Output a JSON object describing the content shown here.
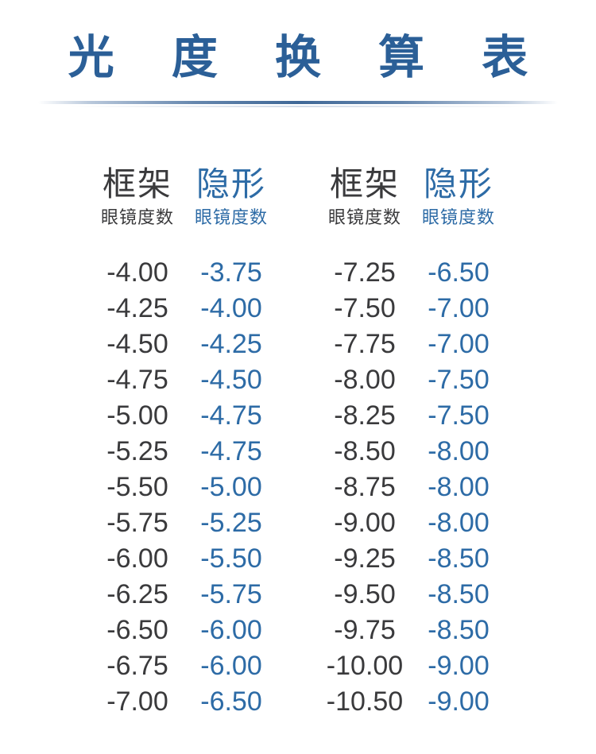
{
  "title": "光 度 换 算 表",
  "colors": {
    "title_blue": "#2b5f97",
    "contact_blue": "#2d6ba6",
    "frame_dark": "#3a3a3c",
    "divider_blue": "#3f6897",
    "background": "#ffffff"
  },
  "headers": {
    "frame_main": "框架",
    "frame_sub": "眼镜度数",
    "contact_main": "隐形",
    "contact_sub": "眼镜度数"
  },
  "chart_data": {
    "type": "table",
    "title": "光度换算表",
    "columns": [
      "框架眼镜度数",
      "隐形眼镜度数",
      "框架眼镜度数",
      "隐形眼镜度数"
    ],
    "groups": [
      {
        "rows": [
          [
            "-4.00",
            "-3.75"
          ],
          [
            "-4.25",
            "-4.00"
          ],
          [
            "-4.50",
            "-4.25"
          ],
          [
            "-4.75",
            "-4.50"
          ],
          [
            "-5.00",
            "-4.75"
          ],
          [
            "-5.25",
            "-4.75"
          ],
          [
            "-5.50",
            "-5.00"
          ],
          [
            "-5.75",
            "-5.25"
          ],
          [
            "-6.00",
            "-5.50"
          ],
          [
            "-6.25",
            "-5.75"
          ],
          [
            "-6.50",
            "-6.00"
          ],
          [
            "-6.75",
            "-6.00"
          ],
          [
            "-7.00",
            "-6.50"
          ]
        ]
      },
      {
        "rows": [
          [
            "-7.25",
            "-6.50"
          ],
          [
            "-7.50",
            "-7.00"
          ],
          [
            "-7.75",
            "-7.00"
          ],
          [
            "-8.00",
            "-7.50"
          ],
          [
            "-8.25",
            "-7.50"
          ],
          [
            "-8.50",
            "-8.00"
          ],
          [
            "-8.75",
            "-8.00"
          ],
          [
            "-9.00",
            "-8.00"
          ],
          [
            "-9.25",
            "-8.50"
          ],
          [
            "-9.50",
            "-8.50"
          ],
          [
            "-9.75",
            "-8.50"
          ],
          [
            "-10.00",
            "-9.00"
          ],
          [
            "-10.50",
            "-9.00"
          ]
        ]
      }
    ]
  }
}
